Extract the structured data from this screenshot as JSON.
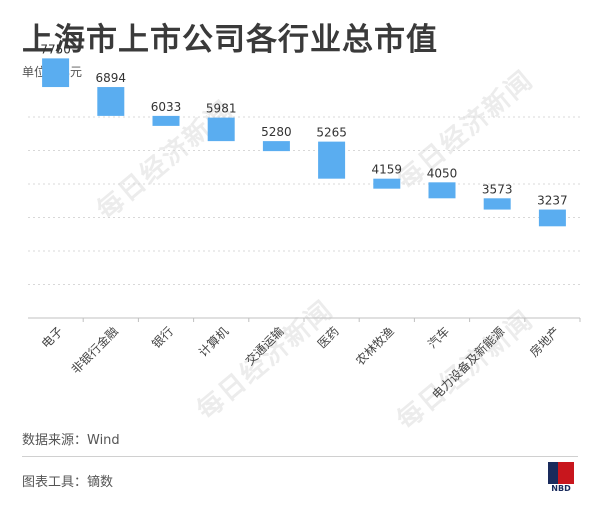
{
  "title": "上海市上市公司各行业总市值",
  "unit_label": "单位：亿元",
  "source": "数据来源：Wind",
  "tool": "图表工具：镝数",
  "watermark": "每日经济新闻",
  "logo_text": "NBD",
  "colors": {
    "bar": "#5aadf0",
    "grid": "#d8d8d8",
    "axis": "#c0c0c0"
  },
  "chart_data": {
    "type": "bar",
    "subtype": "waterfall",
    "categories": [
      "电子",
      "非银行金融",
      "银行",
      "计算机",
      "交通运输",
      "医药",
      "农林牧渔",
      "汽车",
      "电力设备及新能源",
      "房地产"
    ],
    "values": [
      7750,
      6894,
      6033,
      5981,
      5280,
      5265,
      4159,
      4050,
      3573,
      3237
    ],
    "data_labels": [
      "7750",
      "6894",
      "6033",
      "5981",
      "5280",
      "5265",
      "4159",
      "4050",
      "3573",
      "3237"
    ],
    "ylim": [
      0,
      9000
    ],
    "grid": true
  }
}
